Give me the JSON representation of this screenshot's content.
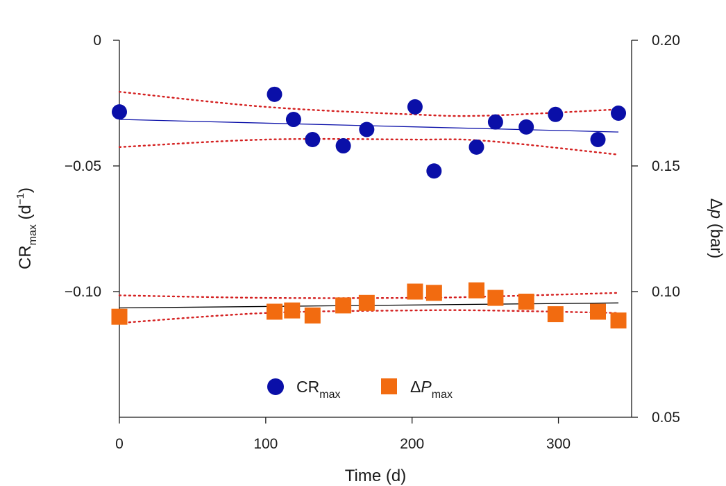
{
  "chart_data": {
    "type": "scatter",
    "x_axis": {
      "label": "Time (d)",
      "range": [
        0,
        350
      ],
      "ticks": [
        0,
        100,
        200,
        300
      ],
      "tick_labels": [
        "0",
        "100",
        "200",
        "300"
      ]
    },
    "y_left": {
      "label_main": "CR",
      "label_sub": "max",
      "label_unit_open": " (d",
      "label_unit_sup": "−1",
      "label_unit_close": ")",
      "range": [
        -0.15,
        0
      ],
      "ticks": [
        0,
        -0.05,
        -0.1
      ],
      "tick_labels": [
        "0",
        "−0.05",
        "−0.10"
      ]
    },
    "y_right": {
      "label_delta": "Δ",
      "label_var": "p",
      "label_unit": " (bar)",
      "range": [
        0.05,
        0.2
      ],
      "ticks": [
        0.2,
        0.15,
        0.1,
        0.05
      ],
      "tick_labels": [
        "0.20",
        "0.15",
        "0.10",
        "0.05"
      ]
    },
    "series": [
      {
        "name": "CRmax",
        "legend_main": "CR",
        "legend_sub": "max",
        "axis": "left",
        "marker": "circle",
        "color": "#0a0fa8",
        "x": [
          0,
          106,
          119,
          132,
          153,
          169,
          202,
          215,
          244,
          257,
          278,
          298,
          327,
          341
        ],
        "y": [
          -0.0285,
          -0.0215,
          -0.0315,
          -0.0395,
          -0.042,
          -0.0355,
          -0.0265,
          -0.052,
          -0.0425,
          -0.0325,
          -0.0345,
          -0.0295,
          -0.0395,
          -0.029
        ],
        "fit": {
          "x": [
            0,
            341
          ],
          "y": [
            -0.0315,
            -0.0365
          ],
          "color": "#0a0fa8"
        },
        "ci_upper": {
          "x": [
            0,
            100,
            200,
            250,
            341
          ],
          "y": [
            -0.0205,
            -0.0265,
            -0.0295,
            -0.03,
            -0.0275
          ]
        },
        "ci_lower": {
          "x": [
            0,
            100,
            200,
            250,
            341
          ],
          "y": [
            -0.0425,
            -0.0395,
            -0.0395,
            -0.04,
            -0.0455
          ]
        }
      },
      {
        "name": "ΔPmax",
        "legend_main": "Δ",
        "legend_var": "P",
        "legend_sub": "max",
        "axis": "right",
        "marker": "square",
        "color": "#f26b10",
        "x": [
          0,
          106,
          118,
          132,
          153,
          169,
          202,
          215,
          244,
          257,
          278,
          298,
          327,
          341
        ],
        "y": [
          0.09,
          0.092,
          0.0925,
          0.0905,
          0.0945,
          0.0955,
          0.1,
          0.0995,
          0.1005,
          0.0975,
          0.096,
          0.091,
          0.092,
          0.0885
        ],
        "fit": {
          "x": [
            0,
            341
          ],
          "y": [
            0.0935,
            0.0955
          ],
          "color": "#000000"
        },
        "ci_upper": {
          "x": [
            0,
            100,
            200,
            250,
            341
          ],
          "y": [
            0.0985,
            0.0975,
            0.0975,
            0.098,
            0.0995
          ]
        },
        "ci_lower": {
          "x": [
            0,
            100,
            200,
            250,
            341
          ],
          "y": [
            0.0875,
            0.0915,
            0.0925,
            0.0925,
            0.0915
          ]
        }
      }
    ],
    "ci_color": "#d42020",
    "legend_placement": "bottom-center"
  }
}
